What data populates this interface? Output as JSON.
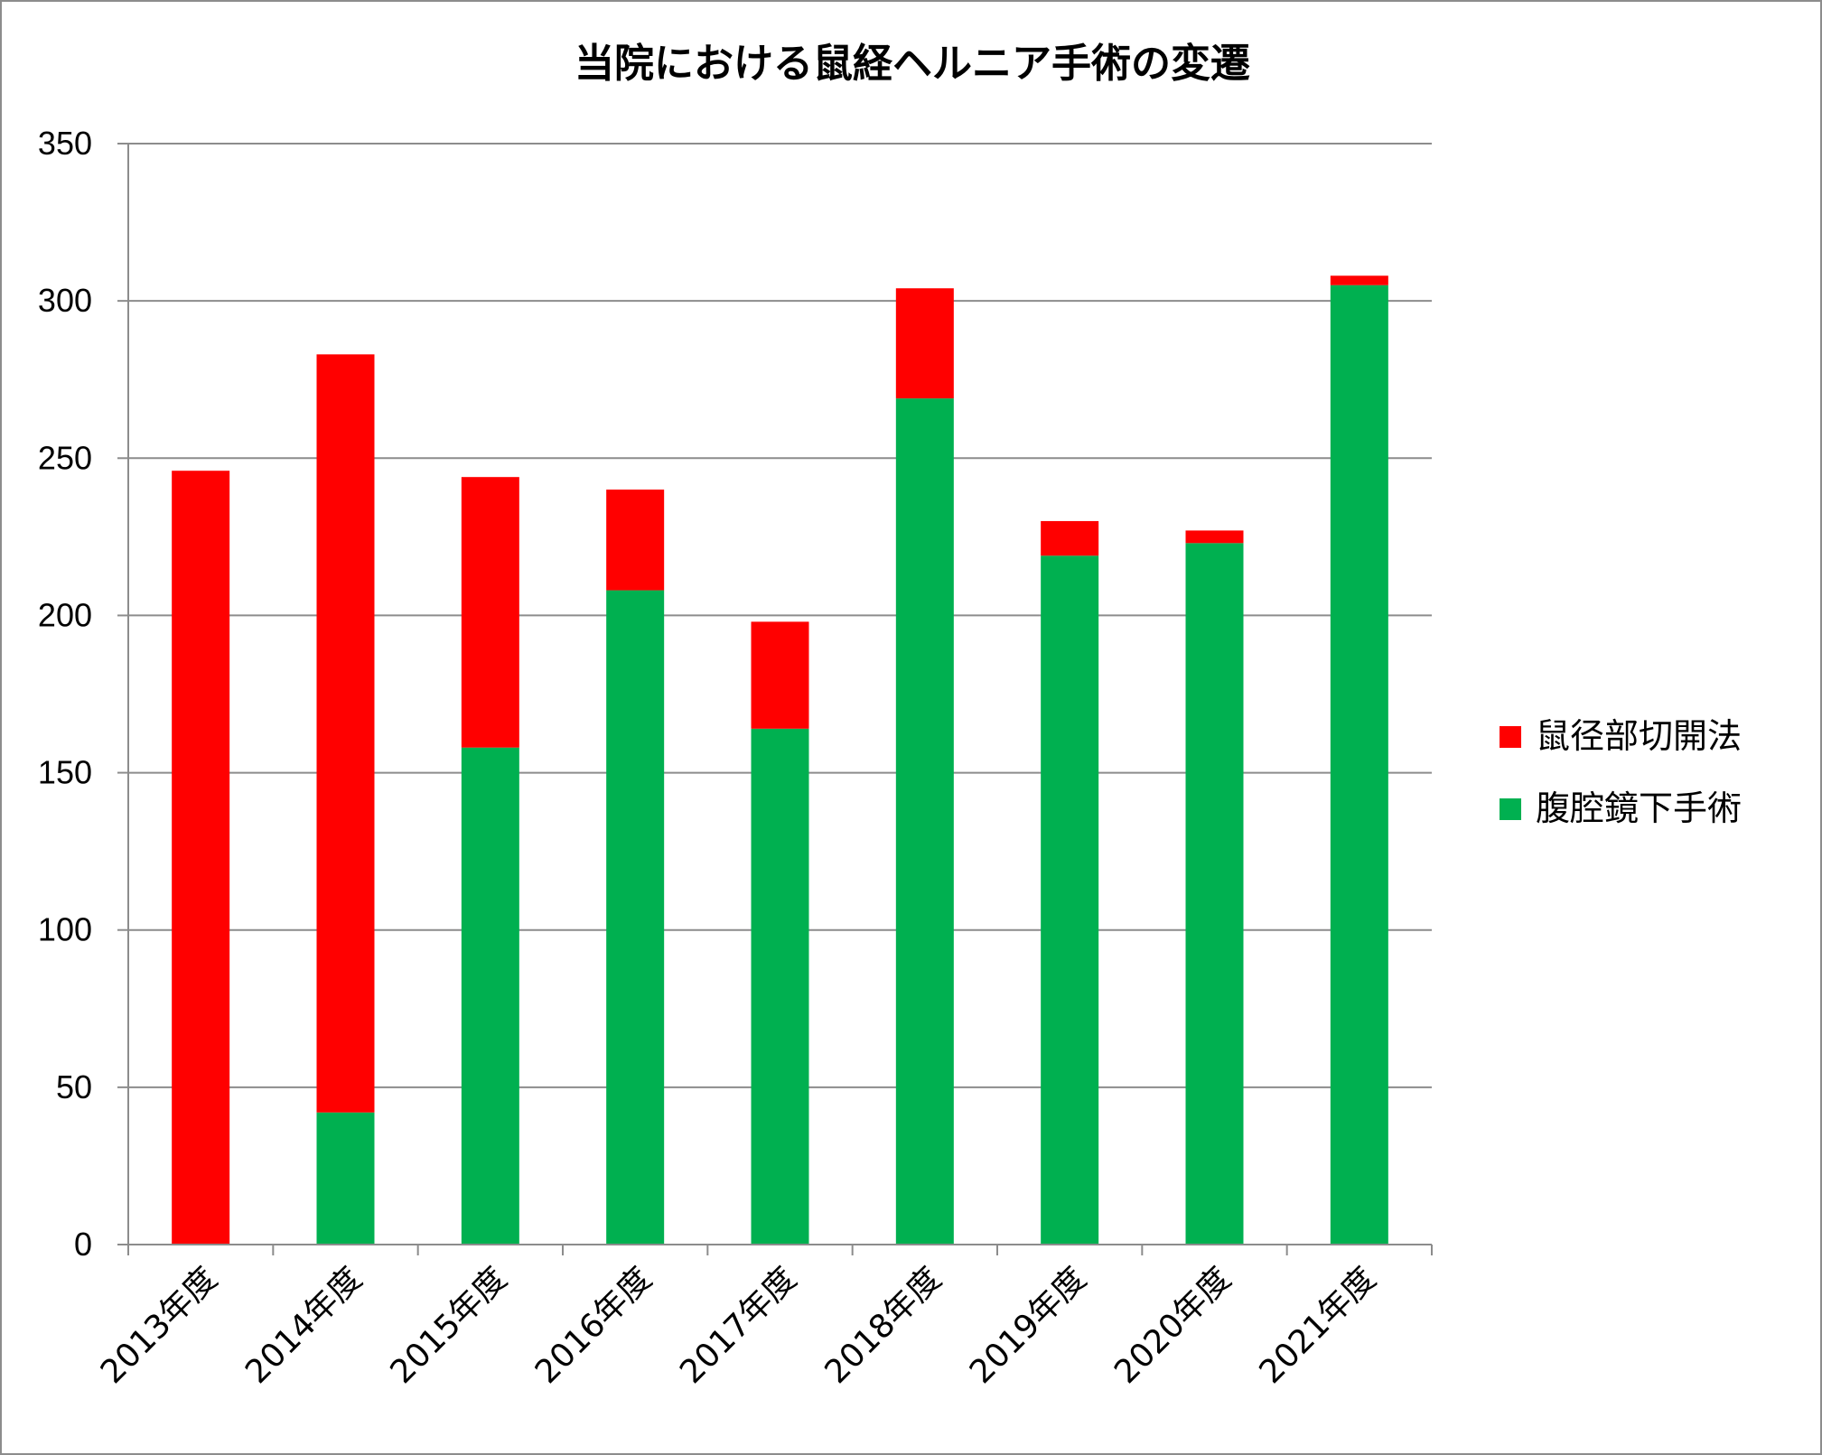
{
  "chart_data": {
    "type": "bar",
    "stacked": true,
    "title": "当院における鼠経ヘルニア手術の変遷",
    "xlabel": "",
    "ylabel": "",
    "categories": [
      "2013年度",
      "2014年度",
      "2015年度",
      "2016年度",
      "2017年度",
      "2018年度",
      "2019年度",
      "2020年度",
      "2021年度"
    ],
    "series": [
      {
        "name": "腹腔鏡下手術",
        "color": "#00b050",
        "values": [
          0,
          42,
          158,
          208,
          164,
          269,
          219,
          223,
          305
        ]
      },
      {
        "name": "鼠径部切開法",
        "color": "#ff0000",
        "values": [
          246,
          241,
          86,
          32,
          34,
          35,
          11,
          4,
          3
        ]
      }
    ],
    "ylim": [
      0,
      350
    ],
    "yticks": [
      0,
      50,
      100,
      150,
      200,
      250,
      300,
      350
    ],
    "grid": true,
    "legend": "right",
    "legend_order": [
      "鼠径部切開法",
      "腹腔鏡下手術"
    ]
  }
}
